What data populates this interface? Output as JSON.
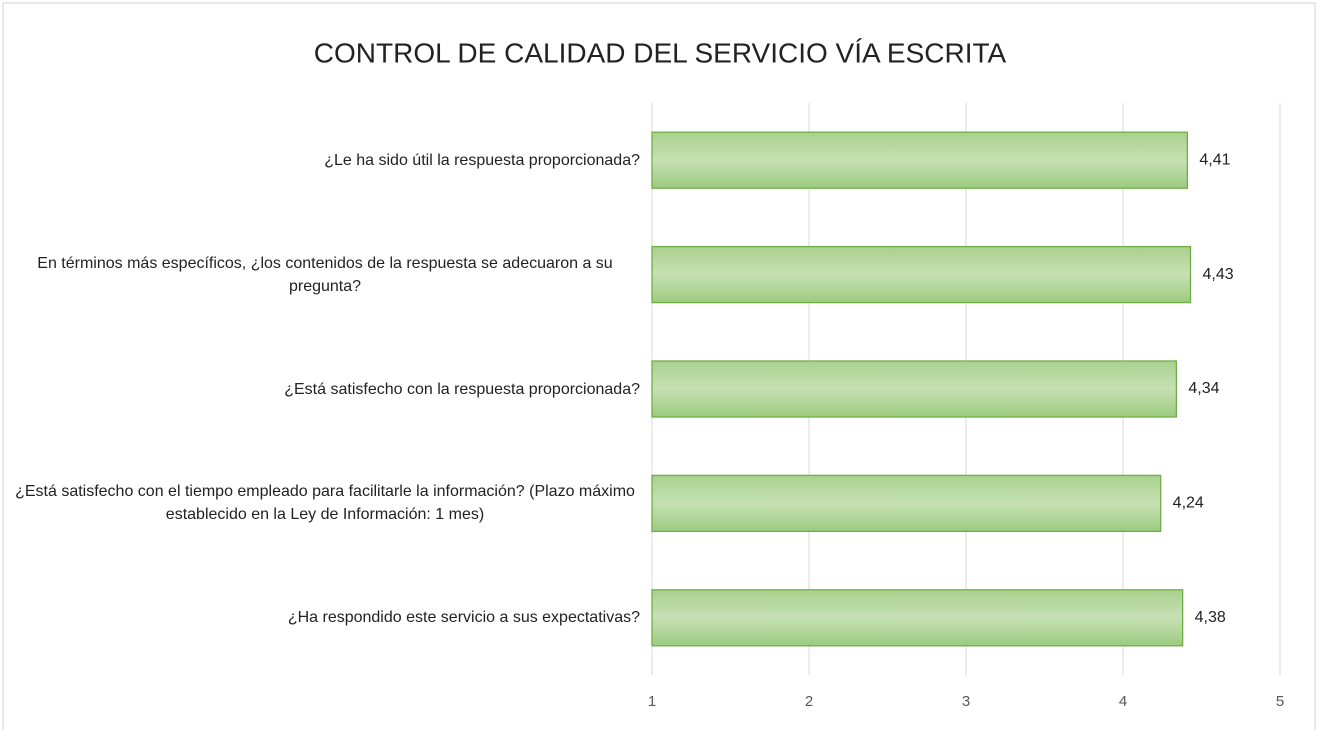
{
  "chart_data": {
    "type": "bar",
    "orientation": "horizontal",
    "title": "CONTROL DE CALIDAD DEL SERVICIO VÍA ESCRITA",
    "categories": [
      "¿Le ha sido útil la respuesta proporcionada?",
      "En términos más específicos, ¿los contenidos de la respuesta se adecuaron a su pregunta?",
      "¿Está satisfecho con la respuesta proporcionada?",
      "¿Está satisfecho con el tiempo empleado para facilitarle la información? (Plazo máximo establecido en la Ley de Información: 1 mes)",
      "¿Ha respondido este servicio a sus expectativas?"
    ],
    "values": [
      4.41,
      4.43,
      4.34,
      4.24,
      4.38
    ],
    "value_labels": [
      "4,41",
      "4,43",
      "4,34",
      "4,24",
      "4,38"
    ],
    "color": "#a9d18e",
    "xlim": [
      1,
      5
    ],
    "xticks": [
      1,
      2,
      3,
      4,
      5
    ],
    "grid": true
  }
}
